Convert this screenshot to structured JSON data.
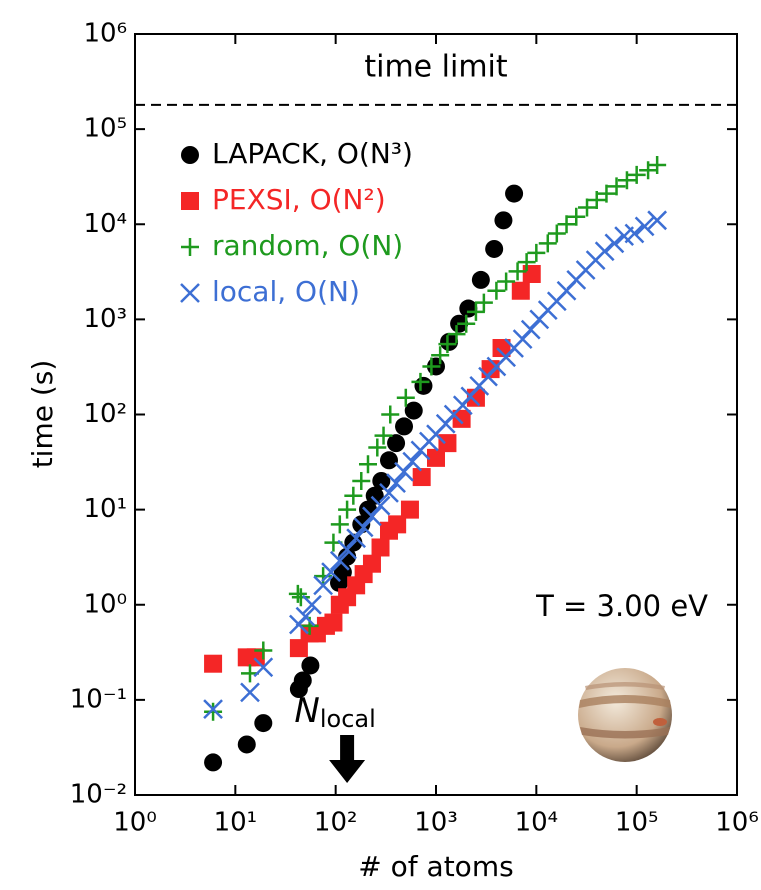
{
  "chart_data": {
    "type": "scatter",
    "x_label": "# of atoms",
    "y_label": "time (s)",
    "xscale": "log",
    "yscale": "log",
    "xlim": [
      1,
      1000000
    ],
    "ylim": [
      0.01,
      1000000
    ],
    "xticks": [
      {
        "value": 1,
        "label": "10⁰"
      },
      {
        "value": 10,
        "label": "10¹"
      },
      {
        "value": 100,
        "label": "10²"
      },
      {
        "value": 1000,
        "label": "10³"
      },
      {
        "value": 10000,
        "label": "10⁴"
      },
      {
        "value": 100000,
        "label": "10⁵"
      },
      {
        "value": 1000000,
        "label": "10⁶"
      }
    ],
    "yticks": [
      {
        "value": 0.01,
        "label": "10⁻²"
      },
      {
        "value": 0.1,
        "label": "10⁻¹"
      },
      {
        "value": 1,
        "label": "10⁰"
      },
      {
        "value": 10,
        "label": "10¹"
      },
      {
        "value": 100,
        "label": "10²"
      },
      {
        "value": 1000,
        "label": "10³"
      },
      {
        "value": 10000,
        "label": "10⁴"
      },
      {
        "value": 100000,
        "label": "10⁵"
      },
      {
        "value": 1000000,
        "label": "10⁶"
      }
    ],
    "grid": false,
    "legend": "upper left",
    "reference_line": {
      "value": 180000,
      "label": "time limit",
      "style": "dashed"
    },
    "temperature_label": "T = 3.00 eV",
    "arrow_annotation": {
      "label": "N",
      "subscript": "local",
      "x": 130
    },
    "series": [
      {
        "name": "LAPACK, O(N³)",
        "color": "#000000",
        "marker": "circle",
        "x": [
          6,
          13,
          19,
          43,
          47,
          56,
          108,
          118,
          130,
          150,
          180,
          210,
          245,
          285,
          340,
          400,
          480,
          600,
          750,
          1000,
          1350,
          1700,
          2100,
          2800,
          3800,
          4700,
          6000
        ],
        "values": [
          0.022,
          0.034,
          0.057,
          0.13,
          0.16,
          0.23,
          1.7,
          2.2,
          3.2,
          4.5,
          7,
          10,
          14,
          20,
          33,
          50,
          75,
          110,
          200,
          320,
          580,
          900,
          1300,
          2600,
          5500,
          11000,
          21000
        ]
      },
      {
        "name": "PEXSI, O(N²)",
        "color": "#f42626",
        "marker": "square",
        "x": [
          6,
          13,
          16,
          43,
          55,
          65,
          80,
          95,
          110,
          130,
          160,
          190,
          230,
          280,
          340,
          410,
          550,
          720,
          1000,
          1300,
          1800,
          2500,
          3500,
          4500,
          7000,
          9000
        ],
        "values": [
          0.24,
          0.28,
          0.28,
          0.35,
          0.5,
          0.5,
          0.6,
          0.65,
          1.0,
          1.2,
          1.6,
          2.1,
          2.7,
          4,
          6,
          7,
          10,
          22,
          35,
          50,
          90,
          150,
          300,
          500,
          2000,
          3000
        ]
      },
      {
        "name": "random, O(N)",
        "color": "#1e9a1e",
        "marker": "plus",
        "x": [
          6,
          14,
          19,
          42,
          45,
          55,
          75,
          95,
          110,
          130,
          150,
          180,
          210,
          260,
          300,
          350,
          500,
          700,
          900,
          1100,
          1300,
          1600,
          2000,
          2500,
          3000,
          4000,
          5000,
          6500,
          8000,
          10000,
          13000,
          16000,
          20000,
          25000,
          32000,
          40000,
          50000,
          63000,
          80000,
          100000,
          130000,
          160000
        ],
        "values": [
          0.075,
          0.19,
          0.33,
          1.3,
          1.2,
          0.6,
          2.0,
          4.5,
          7,
          10,
          14,
          20,
          30,
          45,
          60,
          100,
          150,
          220,
          320,
          420,
          550,
          700,
          900,
          1200,
          1500,
          2000,
          2500,
          3200,
          4000,
          5000,
          6300,
          8000,
          10000,
          12000,
          15000,
          18000,
          21000,
          25000,
          29000,
          33000,
          37000,
          42000
        ]
      },
      {
        "name": "local, O(N)",
        "color": "#3d6fd4",
        "marker": "x",
        "x": [
          6,
          14,
          19,
          43,
          50,
          58,
          75,
          90,
          110,
          130,
          160,
          190,
          230,
          280,
          340,
          400,
          480,
          580,
          700,
          850,
          1000,
          1250,
          1500,
          1850,
          2200,
          2700,
          3300,
          4000,
          5000,
          6000,
          7300,
          8800,
          10700,
          13000,
          16000,
          20000,
          25000,
          31000,
          39000,
          48000,
          60000,
          75000,
          95000,
          120000,
          160000
        ],
        "values": [
          0.08,
          0.12,
          0.22,
          0.62,
          0.75,
          1.0,
          1.6,
          2.2,
          2.9,
          3.8,
          5,
          6.5,
          8.5,
          11,
          15,
          19,
          25,
          32,
          42,
          52,
          62,
          80,
          100,
          125,
          155,
          200,
          250,
          320,
          400,
          500,
          620,
          780,
          1000,
          1250,
          1550,
          2000,
          2600,
          3300,
          4200,
          5200,
          6300,
          7500,
          8000,
          9500,
          11000
        ]
      }
    ]
  }
}
